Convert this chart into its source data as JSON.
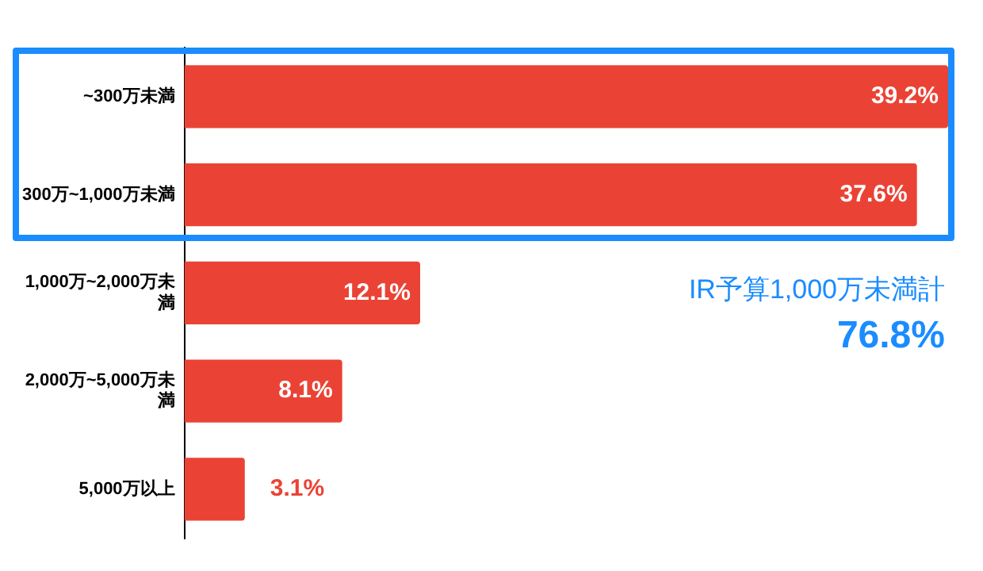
{
  "chart_data": {
    "type": "bar",
    "orientation": "horizontal",
    "categories": [
      "~300万未満",
      "300万~1,000万未満",
      "1,000万~2,000万未満",
      "2,000万~5,000万未満",
      "5,000万以上"
    ],
    "values": [
      39.2,
      37.6,
      12.1,
      8.1,
      3.1
    ],
    "value_labels": [
      "39.2%",
      "37.6%",
      "12.1%",
      "8.1%",
      "3.1%"
    ],
    "color": "#ea4335",
    "tick_labels": "y",
    "annotations": [
      "IR予算1,000万未満計",
      "76.8%"
    ]
  }
}
